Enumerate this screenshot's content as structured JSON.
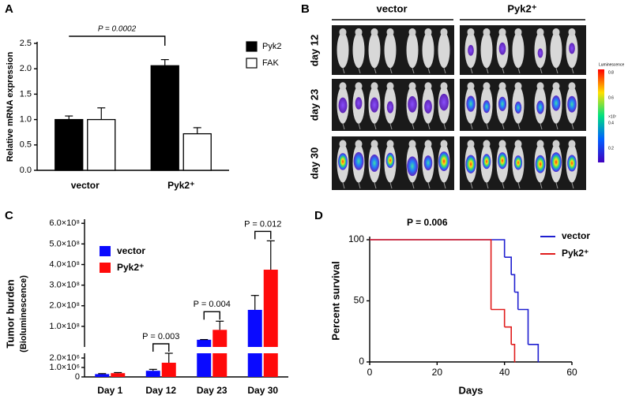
{
  "panels": [
    "A",
    "B",
    "C",
    "D"
  ],
  "imaging": {
    "groups": [
      "vector",
      "Pyk2⁺"
    ],
    "rows": [
      "day 12",
      "day 23",
      "day 30"
    ],
    "colorbar": {
      "title": "Luminescence",
      "unit": "×10⁷",
      "ticks": [
        0.8,
        0.6,
        0.4,
        0.2
      ]
    }
  },
  "chart_data": [
    {
      "type": "bar",
      "ylabel": "Relative mRNA expression",
      "categories": [
        "vector",
        "Pyk2⁺"
      ],
      "series": [
        {
          "name": "Pyk2",
          "color": "#000000",
          "values": [
            1.0,
            2.06
          ],
          "errors": [
            0.07,
            0.12
          ]
        },
        {
          "name": "FAK",
          "color": "#ffffff",
          "values": [
            1.0,
            0.72
          ],
          "errors": [
            0.23,
            0.12
          ]
        }
      ],
      "ylim": [
        0,
        2.5
      ],
      "yticks": [
        {
          "value": 0,
          "label": "0.0"
        },
        0.5,
        {
          "value": 1,
          "label": "1.0"
        },
        1.5,
        {
          "value": 2,
          "label": "2.0"
        },
        2.5
      ],
      "annotation": "P = 0.0002",
      "legend": "right"
    },
    {
      "type": "broken-bar",
      "ylabel": [
        "Tumor burden",
        "(Bioluminescence)"
      ],
      "categories": [
        "Day 1",
        "Day 12",
        "Day 23",
        "Day 30"
      ],
      "series": [
        {
          "name": "vector",
          "color": "#0a0aff",
          "values": [
            300000,
            650000,
            35000000,
            180000000
          ],
          "errors": [
            50000,
            150000,
            1000000,
            70000000
          ]
        },
        {
          "name": "Pyk2⁺",
          "color": "#ff0a0a",
          "values": [
            400000,
            1500000,
            83000000,
            375000000
          ],
          "errors": [
            60000,
            1000000,
            42000000,
            140000000
          ]
        }
      ],
      "ylim_lower": [
        0,
        2500000
      ],
      "yticks_lower": [
        0,
        {
          "value": 1000000,
          "label": "1.0×10⁶"
        },
        {
          "value": 2000000,
          "label": "2.0×10⁶"
        }
      ],
      "ylim_upper": [
        0,
        620000000
      ],
      "yticks_upper": [
        {
          "value": 100000000,
          "label": "1.0×10⁸"
        },
        {
          "value": 200000000,
          "label": "2.0×10⁸"
        },
        {
          "value": 300000000,
          "label": "3.0×10⁸"
        },
        {
          "value": 400000000,
          "label": "4.0×10⁸"
        },
        {
          "value": 500000000,
          "label": "5.0×10⁸"
        },
        {
          "value": 600000000,
          "label": "6.0×10⁸"
        }
      ],
      "p_values": [
        null,
        "P = 0.003",
        "P = 0.004",
        "P = 0.012"
      ],
      "legend": "upper left"
    },
    {
      "type": "survival",
      "xlabel": "Days",
      "ylabel": "Percent survival",
      "series": [
        {
          "name": "vector",
          "color": "#1f1fd0",
          "x": [
            0,
            40,
            42,
            43,
            44,
            47,
            50
          ],
          "values": [
            100,
            85.7,
            71.4,
            57.1,
            42.9,
            14.3,
            0
          ]
        },
        {
          "name": "Pyk2⁺",
          "color": "#e01c1c",
          "x": [
            0,
            36,
            40,
            42,
            43
          ],
          "values": [
            100,
            42.9,
            28.6,
            14.3,
            0
          ]
        }
      ],
      "xlim": [
        0,
        60
      ],
      "xticks": [
        0,
        20,
        40,
        60
      ],
      "ylim": [
        0,
        100
      ],
      "yticks": [
        0,
        50,
        100
      ],
      "annotation": "P = 0.006",
      "legend": "upper right"
    }
  ]
}
